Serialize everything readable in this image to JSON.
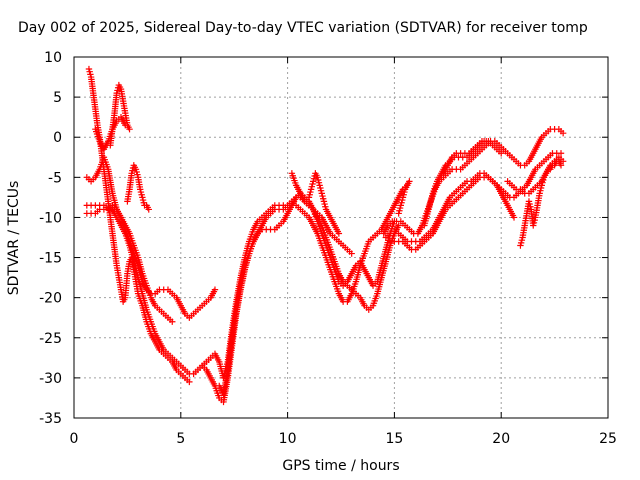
{
  "chart_data": {
    "type": "scatter",
    "title": "Day 002 of 2025, Sidereal Day-to-day VTEC variation (SDTVAR) for receiver tomp",
    "xlabel": "GPS time / hours",
    "ylabel": "SDTVAR / TECUs",
    "xlim": [
      0,
      25
    ],
    "ylim": [
      -35,
      10
    ],
    "xticks": [
      "0",
      "5",
      "10",
      "15",
      "20",
      "25"
    ],
    "yticks": [
      "10",
      "5",
      "0",
      "-5",
      "-10",
      "-15",
      "-20",
      "-25",
      "-30",
      "-35"
    ],
    "grid": true,
    "marker": "plus",
    "color": "#ff0000",
    "series": [
      {
        "x": [
          0.7,
          0.8,
          0.9,
          1.0,
          1.1,
          1.2,
          1.3,
          1.4,
          1.5,
          1.6,
          1.7,
          1.8,
          1.9,
          2.0,
          2.1,
          2.2,
          2.3,
          2.4,
          2.5,
          2.6,
          2.7,
          2.8,
          2.9,
          3.0,
          3.2,
          3.4,
          3.6,
          3.8,
          4.0,
          4.2,
          4.4,
          4.6,
          4.8,
          5.0,
          5.2,
          5.4
        ],
        "y": [
          8.5,
          7.5,
          5.5,
          3.5,
          1.5,
          0,
          -2,
          -4,
          -6,
          -8,
          -10,
          -12,
          -14,
          -16,
          -17.5,
          -19,
          -20.5,
          -20,
          -17,
          -15.5,
          -15,
          -16.5,
          -18,
          -19.5,
          -21,
          -23,
          -24.5,
          -25.5,
          -26.5,
          -27,
          -27.5,
          -28,
          -29,
          -29.5,
          -30,
          -30.5
        ]
      },
      {
        "x": [
          0.6,
          0.8,
          1.0,
          1.2,
          1.4,
          1.6,
          1.8,
          2.0,
          2.2,
          2.4,
          2.6,
          2.8,
          3.0,
          3.2,
          3.4,
          3.6,
          3.8,
          4.0,
          4.2,
          4.4,
          4.6,
          4.8,
          5.0,
          5.2,
          5.4,
          5.6,
          5.8,
          6.0,
          6.2,
          6.4,
          6.6,
          6.8,
          7.0
        ],
        "y": [
          -8.5,
          -8.5,
          -8.5,
          -8.5,
          -8.5,
          -9,
          -9,
          -10,
          -11,
          -12,
          -13.5,
          -15.5,
          -17.5,
          -19.5,
          -21.5,
          -23,
          -24.5,
          -25.5,
          -26.5,
          -27,
          -27.5,
          -28,
          -28.5,
          -29,
          -29.5,
          -29.5,
          -29,
          -28.5,
          -28,
          -27.5,
          -27,
          -28,
          -30
        ]
      },
      {
        "x": [
          0.6,
          0.8,
          1.0,
          1.2,
          1.4,
          1.6,
          1.8,
          2.0,
          2.2,
          2.4,
          2.6,
          2.8,
          3.0,
          3.2,
          3.4,
          3.6,
          3.8,
          4.0,
          4.2,
          4.4,
          4.6,
          4.8,
          5.0,
          5.2,
          5.4,
          5.6,
          5.8,
          6.0,
          6.2,
          6.4,
          6.6
        ],
        "y": [
          -9.5,
          -9.5,
          -9.5,
          -9,
          -9,
          -9,
          -8.5,
          -9,
          -10,
          -11.5,
          -13,
          -14.5,
          -16,
          -18,
          -19,
          -19.5,
          -19.5,
          -19,
          -19,
          -19,
          -19.5,
          -20,
          -21,
          -22,
          -22.5,
          -22,
          -21.5,
          -21,
          -20.5,
          -20,
          -19
        ]
      },
      {
        "x": [
          0.6,
          0.8,
          1.0,
          1.2,
          1.4,
          1.6,
          1.8,
          2.0,
          2.2,
          2.4,
          2.6,
          2.8,
          3.0,
          3.2,
          3.4,
          3.6,
          3.8,
          4.0,
          4.2,
          4.4,
          4.6
        ],
        "y": [
          -5,
          -5.5,
          -5,
          -4,
          -2.5,
          -4,
          -7,
          -9,
          -10,
          -11,
          -12,
          -13.5,
          -15,
          -17,
          -18.5,
          -20,
          -21,
          -21.5,
          -22,
          -22.5,
          -23
        ]
      },
      {
        "x": [
          1.7,
          1.8,
          1.9,
          2.0,
          2.1,
          2.2,
          2.3,
          2.4,
          2.5,
          2.6
        ],
        "y": [
          -1,
          1,
          3,
          5.5,
          6.5,
          6,
          4.5,
          3,
          1.5,
          1
        ]
      },
      {
        "x": [
          2.5,
          2.6,
          2.7,
          2.8,
          2.9,
          3.0,
          3.1,
          3.2,
          3.3,
          3.4,
          3.5
        ],
        "y": [
          -8,
          -6.5,
          -4.5,
          -3.5,
          -4,
          -5,
          -6.5,
          -7.5,
          -8.5,
          -8.5,
          -9
        ]
      },
      {
        "x": [
          1.0,
          1.2,
          1.4,
          1.6,
          1.8,
          2.0,
          2.2,
          2.4
        ],
        "y": [
          1,
          -0.5,
          -1.5,
          -0.5,
          1,
          2,
          2.5,
          1.5
        ]
      },
      {
        "x": [
          6.0,
          6.2,
          6.4,
          6.6,
          6.8,
          7.0,
          7.2,
          7.4,
          7.6,
          7.8,
          8.0,
          8.2,
          8.4,
          8.6,
          8.8,
          9.0,
          9.2,
          9.4,
          9.6,
          9.8,
          10.0,
          10.2,
          10.4,
          10.6,
          10.8,
          11.0,
          11.2,
          11.4,
          11.6,
          11.8,
          12.0,
          12.2,
          12.4,
          12.6,
          12.8,
          13.0,
          13.2,
          13.4,
          13.6,
          13.8,
          14.0,
          14.2,
          14.4,
          14.6,
          14.8,
          15.0,
          15.2,
          15.4,
          15.6
        ],
        "y": [
          -28.5,
          -29,
          -30,
          -31,
          -32.5,
          -33,
          -30,
          -26,
          -22,
          -19,
          -16.5,
          -14.5,
          -13,
          -12,
          -11,
          -10,
          -9.5,
          -9,
          -9,
          -9,
          -8.5,
          -8.5,
          -8.5,
          -9,
          -9.5,
          -10,
          -11,
          -12,
          -13.5,
          -15,
          -16.5,
          -18,
          -19.5,
          -20.5,
          -20.5,
          -19.5,
          -18,
          -16,
          -14.5,
          -13,
          -12.5,
          -12,
          -11.5,
          -10.5,
          -9.5,
          -8.5,
          -7.5,
          -6.5,
          -6
        ]
      },
      {
        "x": [
          6.8,
          7.0,
          7.2,
          7.4,
          7.6,
          7.8,
          8.0,
          8.2,
          8.4,
          8.6,
          8.8,
          9.0,
          9.2,
          9.4,
          9.6,
          9.8,
          10.0,
          10.2,
          10.4,
          10.6,
          10.8,
          11.0,
          11.2,
          11.4,
          11.6,
          11.8,
          12.0,
          12.2,
          12.4,
          12.6,
          12.8,
          13.0,
          13.2,
          13.4,
          13.6,
          13.8,
          14.0,
          14.2,
          14.4,
          14.6,
          14.8,
          15.0
        ],
        "y": [
          -31,
          -32,
          -29,
          -25,
          -21.5,
          -18.5,
          -16,
          -14.5,
          -13,
          -12,
          -11.5,
          -11.5,
          -11.5,
          -11.5,
          -11,
          -10.5,
          -9.5,
          -8.5,
          -7.5,
          -7,
          -7.5,
          -8,
          -9,
          -10.5,
          -12,
          -13.5,
          -15,
          -16.5,
          -18,
          -18.5,
          -18,
          -17,
          -16,
          -15.5,
          -16.5,
          -17.5,
          -18.5,
          -18,
          -16,
          -14,
          -12,
          -10.5
        ]
      },
      {
        "x": [
          7.0,
          7.2,
          7.4,
          7.6,
          7.8,
          8.0,
          8.2,
          8.4,
          8.6,
          8.8,
          9.0,
          9.2,
          9.4,
          9.6,
          9.8,
          10.0,
          10.2,
          10.4,
          10.6,
          10.8,
          11.0,
          11.2,
          11.4,
          11.6,
          11.8,
          12.0,
          12.2,
          12.4,
          12.6,
          12.8,
          13.0,
          13.2,
          13.4,
          13.6,
          13.8,
          14.0,
          14.2,
          14.4,
          14.6,
          14.8,
          15.0,
          15.2
        ],
        "y": [
          -30,
          -28,
          -24,
          -20.5,
          -17.5,
          -15,
          -13,
          -11.5,
          -10.5,
          -10,
          -9.5,
          -9,
          -8.5,
          -8.5,
          -8.5,
          -8.5,
          -8,
          -7.5,
          -7.5,
          -8,
          -8.5,
          -9,
          -10,
          -11,
          -12.5,
          -14,
          -15.5,
          -17,
          -18,
          -18.5,
          -19,
          -19.5,
          -20,
          -21,
          -21.5,
          -21,
          -19.5,
          -17.5,
          -15.5,
          -13.5,
          -12,
          -11
        ]
      },
      {
        "x": [
          10.2,
          10.4,
          10.6,
          10.8,
          11.0,
          11.2,
          11.4,
          11.6,
          11.8,
          12.0,
          12.2,
          12.4,
          12.6,
          12.8,
          13.0
        ],
        "y": [
          -4.5,
          -6,
          -7,
          -8,
          -8.5,
          -9,
          -9.5,
          -10,
          -11,
          -12,
          -12.5,
          -13,
          -13.5,
          -14,
          -14.5
        ]
      },
      {
        "x": [
          11.0,
          11.1,
          11.2,
          11.3,
          11.4,
          11.5,
          11.6,
          11.7,
          11.8,
          12.0,
          12.2,
          12.4
        ],
        "y": [
          -7.5,
          -6.5,
          -5.5,
          -4.5,
          -5,
          -6,
          -7,
          -8,
          -9,
          -10,
          -11,
          -12
        ]
      },
      {
        "x": [
          14.5,
          14.7,
          14.9,
          15.1,
          15.3,
          15.5,
          15.7,
          15.9,
          16.1,
          16.3,
          16.5,
          16.7,
          16.9,
          17.1,
          17.3,
          17.5,
          17.7,
          17.9,
          18.1,
          18.3,
          18.5,
          18.7,
          18.9,
          19.1,
          19.3,
          19.5,
          19.7,
          19.9,
          20.1,
          20.3,
          20.5,
          20.7,
          20.9,
          21.1,
          21.3,
          21.5,
          21.7,
          21.9,
          22.1,
          22.3,
          22.5,
          22.7,
          22.9
        ],
        "y": [
          -12,
          -11,
          -10.5,
          -10.5,
          -10.5,
          -11,
          -11.5,
          -12,
          -12,
          -11,
          -9.5,
          -8,
          -6.5,
          -5.5,
          -5,
          -4.5,
          -4,
          -4,
          -4,
          -3.5,
          -3,
          -2.5,
          -2,
          -1.5,
          -1,
          -0.5,
          -0.5,
          -1,
          -1.5,
          -2,
          -2.5,
          -3,
          -3.5,
          -3.5,
          -3,
          -2,
          -1,
          0,
          0.5,
          1,
          1,
          1,
          0.5
        ]
      },
      {
        "x": [
          14.6,
          14.8,
          15.0,
          15.2,
          15.4,
          15.6,
          15.8,
          16.0,
          16.2,
          16.4,
          16.6,
          16.8,
          17.0,
          17.2,
          17.4,
          17.6,
          17.8,
          18.0,
          18.2,
          18.4,
          18.6,
          18.8,
          19.0,
          19.2,
          19.4,
          19.6,
          19.8,
          20.0,
          20.2,
          20.4,
          20.6,
          20.8,
          21.0,
          21.2,
          21.4,
          21.6,
          21.8,
          22.0,
          22.2,
          22.4,
          22.6,
          22.8
        ],
        "y": [
          -12.5,
          -12,
          -12,
          -12,
          -12.5,
          -13,
          -13,
          -13,
          -13,
          -12.5,
          -12,
          -11.5,
          -10.5,
          -9.5,
          -8.5,
          -7.5,
          -7,
          -6.5,
          -6,
          -5.5,
          -5.5,
          -5,
          -4.5,
          -4.5,
          -5,
          -5.5,
          -6,
          -6.5,
          -7,
          -7.5,
          -7.5,
          -7,
          -6.5,
          -6,
          -5,
          -4,
          -3.5,
          -3,
          -2.5,
          -2,
          -2,
          -2
        ]
      },
      {
        "x": [
          14.8,
          15.0,
          15.2,
          15.4,
          15.6,
          15.8,
          16.0,
          16.2,
          16.4,
          16.6,
          16.8,
          17.0,
          17.2,
          17.4,
          17.6,
          17.8,
          18.0,
          18.2,
          18.4,
          18.6,
          18.8,
          19.0,
          19.2,
          19.4,
          19.6,
          19.8,
          20.0,
          20.2,
          20.4,
          20.6
        ],
        "y": [
          -13,
          -13,
          -13,
          -13,
          -13.5,
          -14,
          -14,
          -13.5,
          -13,
          -12.5,
          -12,
          -11,
          -10,
          -9,
          -8.5,
          -8,
          -7.5,
          -7,
          -6.5,
          -6,
          -5.5,
          -5,
          -5,
          -5,
          -5.5,
          -6,
          -7,
          -8,
          -9,
          -10
        ]
      },
      {
        "x": [
          16.4,
          16.6,
          16.8,
          17.0,
          17.2,
          17.4,
          17.6,
          17.8,
          18.0,
          18.2,
          18.4,
          18.6,
          18.8,
          19.0,
          19.2,
          19.4,
          19.6,
          19.8,
          20.0
        ],
        "y": [
          -11,
          -9,
          -7,
          -5.5,
          -4.5,
          -3.5,
          -3,
          -2.5,
          -2.5,
          -2.5,
          -2.5,
          -2,
          -1.5,
          -1,
          -0.5,
          -0.5,
          -1,
          -1.5,
          -2
        ]
      },
      {
        "x": [
          17.3,
          17.5,
          17.7,
          17.9,
          18.1,
          18.3,
          18.5,
          18.7,
          18.9,
          19.1,
          19.3
        ],
        "y": [
          -4.5,
          -3.5,
          -2.5,
          -2,
          -2,
          -2,
          -2,
          -1.5,
          -1,
          -0.5,
          -0.5
        ]
      },
      {
        "x": [
          20.3,
          20.5,
          20.7,
          20.9,
          21.1,
          21.3,
          21.5,
          21.7,
          21.9,
          22.1,
          22.3,
          22.5,
          22.7,
          22.9
        ],
        "y": [
          -5.5,
          -6,
          -6.5,
          -6.5,
          -7,
          -7,
          -6.5,
          -6,
          -5.5,
          -4.5,
          -3.5,
          -3,
          -2.5,
          -3
        ]
      },
      {
        "x": [
          20.9,
          21.0,
          21.1,
          21.2,
          21.3,
          21.4,
          21.5,
          21.6,
          21.7,
          21.8,
          21.9,
          22.0,
          22.1,
          22.2,
          22.3,
          22.4,
          22.5,
          22.6,
          22.7,
          22.8
        ],
        "y": [
          -13.5,
          -12.5,
          -11,
          -9.5,
          -8,
          -9,
          -11,
          -10,
          -8.5,
          -7,
          -6,
          -5,
          -4.5,
          -4,
          -4,
          -3.5,
          -3.5,
          -3,
          -3,
          -3.5
        ]
      },
      {
        "x": [
          15.2,
          15.3,
          15.4,
          15.5,
          15.6,
          15.7
        ],
        "y": [
          -9.5,
          -8.5,
          -7.5,
          -6.5,
          -6,
          -5.5
        ]
      }
    ]
  }
}
